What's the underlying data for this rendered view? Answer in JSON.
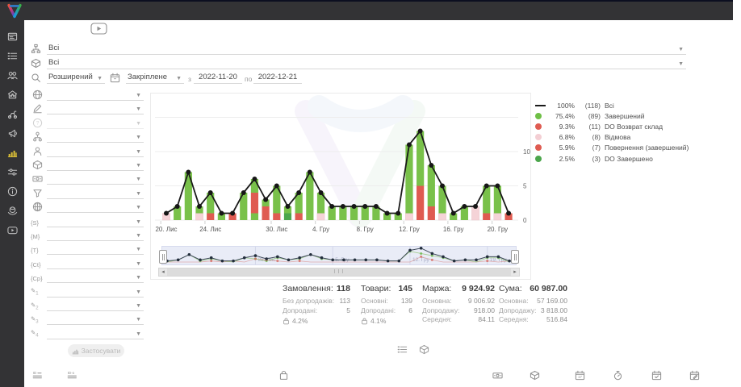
{
  "sidebar": {
    "items": [
      {
        "icon": "window-panel"
      },
      {
        "icon": "order-list"
      },
      {
        "icon": "customers"
      },
      {
        "icon": "warehouse"
      },
      {
        "icon": "delivery"
      },
      {
        "icon": "megaphone"
      },
      {
        "icon": "statistics-chart",
        "active": true
      },
      {
        "icon": "settings-sliders"
      },
      {
        "icon": "info"
      },
      {
        "icon": "partners"
      },
      {
        "icon": "video-play"
      }
    ]
  },
  "filters": {
    "source": {
      "icon": "site-tree",
      "value": "Всі"
    },
    "product": {
      "icon": "cube",
      "value": "Всі"
    },
    "mode": {
      "icon": "search",
      "value": "Розширений"
    },
    "period": {
      "icon": "calendar",
      "value": "Закріплене",
      "from_label": "з",
      "from": "2022-11-20",
      "to_label": "по",
      "to": "2022-12-21"
    },
    "rows": [
      {
        "icon": "globe"
      },
      {
        "icon": "signature"
      },
      {
        "icon": "help",
        "disabled": true
      },
      {
        "icon": "hierarchy"
      },
      {
        "icon": "person"
      },
      {
        "icon": "cube"
      },
      {
        "icon": "banknote"
      },
      {
        "icon": "funnel"
      },
      {
        "icon": "globe-grid"
      },
      {
        "icon": "brace",
        "label": "{S}"
      },
      {
        "icon": "brace",
        "label": "{M}"
      },
      {
        "icon": "brace",
        "label": "{T}"
      },
      {
        "icon": "brace",
        "label": "{Ct}"
      },
      {
        "icon": "brace",
        "label": "{Cp}"
      },
      {
        "icon": "pencil",
        "label": "1"
      },
      {
        "icon": "pencil",
        "label": "2"
      },
      {
        "icon": "pencil",
        "label": "3"
      },
      {
        "icon": "pencil",
        "label": "4"
      }
    ],
    "apply_label": "Застосувати"
  },
  "chart_data": {
    "type": "bar",
    "stacked": true,
    "title": "",
    "xlabel": "",
    "ylabel": "",
    "ylim": [
      0,
      15
    ],
    "yticks": [
      0,
      5,
      10
    ],
    "grid": true,
    "legend_position": "right",
    "x_dates": [
      "2022-11-20",
      "2022-11-21",
      "2022-11-22",
      "2022-11-23",
      "2022-11-24",
      "2022-11-25",
      "2022-11-26",
      "2022-11-27",
      "2022-11-28",
      "2022-11-29",
      "2022-11-30",
      "2022-12-01",
      "2022-12-02",
      "2022-12-03",
      "2022-12-04",
      "2022-12-05",
      "2022-12-06",
      "2022-12-07",
      "2022-12-08",
      "2022-12-09",
      "2022-12-10",
      "2022-12-11",
      "2022-12-12",
      "2022-12-13",
      "2022-12-14",
      "2022-12-15",
      "2022-12-16",
      "2022-12-17",
      "2022-12-18",
      "2022-12-19",
      "2022-12-20",
      "2022-12-21"
    ],
    "totals": [
      1,
      2,
      7,
      2,
      4,
      1,
      1,
      4,
      6,
      3,
      5,
      2,
      4,
      7,
      4,
      2,
      2,
      2,
      2,
      2,
      1,
      1,
      11,
      13,
      8,
      5,
      1,
      2,
      2,
      5,
      5,
      1
    ],
    "stacks": [
      [
        [
          "p",
          1
        ]
      ],
      [
        [
          "g",
          2
        ]
      ],
      [
        [
          "g",
          7
        ]
      ],
      [
        [
          "p",
          1
        ],
        [
          "g",
          1
        ]
      ],
      [
        [
          "r",
          1
        ],
        [
          "g",
          3
        ]
      ],
      [
        [
          "g",
          1
        ]
      ],
      [
        [
          "r",
          1
        ]
      ],
      [
        [
          "g",
          4
        ]
      ],
      [
        [
          "g",
          1
        ],
        [
          "r",
          3
        ],
        [
          "g",
          2
        ]
      ],
      [
        [
          "r",
          2
        ],
        [
          "g",
          1
        ]
      ],
      [
        [
          "r",
          1
        ],
        [
          "g",
          4
        ]
      ],
      [
        [
          "gd",
          1
        ],
        [
          "g",
          1
        ]
      ],
      [
        [
          "r",
          1
        ],
        [
          "g",
          3
        ]
      ],
      [
        [
          "g",
          7
        ]
      ],
      [
        [
          "p",
          1
        ],
        [
          "g",
          3
        ]
      ],
      [
        [
          "g",
          2
        ]
      ],
      [
        [
          "g",
          2
        ]
      ],
      [
        [
          "g",
          2
        ]
      ],
      [
        [
          "g",
          2
        ]
      ],
      [
        [
          "g",
          2
        ]
      ],
      [
        [
          "g",
          1
        ]
      ],
      [
        [
          "g",
          1
        ]
      ],
      [
        [
          "p",
          1
        ],
        [
          "g",
          10
        ]
      ],
      [
        [
          "r",
          5
        ],
        [
          "g",
          8
        ]
      ],
      [
        [
          "r",
          2
        ],
        [
          "g",
          6
        ]
      ],
      [
        [
          "p",
          1
        ],
        [
          "g",
          4
        ]
      ],
      [
        [
          "g",
          1
        ]
      ],
      [
        [
          "g",
          2
        ]
      ],
      [
        [
          "p",
          2
        ]
      ],
      [
        [
          "r",
          1
        ],
        [
          "g",
          4
        ]
      ],
      [
        [
          "p",
          1
        ],
        [
          "g",
          4
        ]
      ],
      [
        [
          "r",
          1
        ]
      ]
    ],
    "colors": {
      "g": "#79c14a",
      "gd": "#4ca64c",
      "r": "#df5b51",
      "p": "#f5d3d7",
      "line": "#1a1a1a"
    },
    "xticks": [
      {
        "index": 0,
        "label": "20. Лис"
      },
      {
        "index": 4,
        "label": "24. Лис"
      },
      {
        "index": 10,
        "label": "30. Лис"
      },
      {
        "index": 14,
        "label": "4. Гру"
      },
      {
        "index": 18,
        "label": "8. Гру"
      },
      {
        "index": 22,
        "label": "12. Гру"
      },
      {
        "index": 26,
        "label": "16. Гру"
      },
      {
        "index": 30,
        "label": "20. Гру"
      }
    ]
  },
  "legend": {
    "items": [
      {
        "marker": "line",
        "color": "#1a1a1a",
        "percent": "100%",
        "count": "(118)",
        "label": "Всі"
      },
      {
        "marker": "dot",
        "color": "#6ebf45",
        "percent": "75.4%",
        "count": "(89)",
        "label": "Завершений"
      },
      {
        "marker": "dot",
        "color": "#df5b51",
        "percent": "9.3%",
        "count": "(11)",
        "label": "DO Возврат склад"
      },
      {
        "marker": "dot",
        "color": "#f3ced3",
        "percent": "6.8%",
        "count": "(8)",
        "label": "Відмова"
      },
      {
        "marker": "dot",
        "color": "#df5b51",
        "percent": "5.9%",
        "count": "(7)",
        "label": "Повернення (завершений)"
      },
      {
        "marker": "dot",
        "color": "#4ca64c",
        "percent": "2.5%",
        "count": "(3)",
        "label": "DO Завершено"
      }
    ]
  },
  "navigator": {
    "labels": [
      {
        "index": 8,
        "label": "28. Лис"
      },
      {
        "index": 15,
        "label": "5. Гру"
      },
      {
        "index": 22,
        "label": "12. Гру"
      },
      {
        "index": 29,
        "label": "19. Гру"
      }
    ],
    "left_arrow": "◂",
    "right_arrow": "▸",
    "grip": "| | |"
  },
  "stats": {
    "columns": [
      {
        "title": "Замовлення:",
        "value": "118",
        "rows": [
          {
            "label": "Без допродажів:",
            "value": "113"
          },
          {
            "label": "Допродані:",
            "value": "5"
          }
        ],
        "percent": "4.2%"
      },
      {
        "title": "Товари:",
        "value": "145",
        "rows": [
          {
            "label": "Основні:",
            "value": "139"
          },
          {
            "label": "Допродані:",
            "value": "6"
          }
        ],
        "percent": "4.1%"
      },
      {
        "title": "Маржа:",
        "value": "9 924.92",
        "rows": [
          {
            "label": "Основна:",
            "value": "9 006.92"
          },
          {
            "label": "Допродажу:",
            "value": "918.00"
          },
          {
            "label": "Середня:",
            "value": "84.11"
          }
        ]
      },
      {
        "title": "Сума:",
        "value": "60 987.00",
        "rows": [
          {
            "label": "Основна:",
            "value": "57 169.00"
          },
          {
            "label": "Допродажу:",
            "value": "3 818.00"
          },
          {
            "label": "Середня:",
            "value": "516.84"
          }
        ]
      }
    ]
  },
  "view_toggles": [
    {
      "icon": "order-list"
    },
    {
      "icon": "cube"
    }
  ],
  "bottom_icons": [
    {
      "icon": "id-lines"
    },
    {
      "icon": "id-o-lines"
    },
    {
      "icon": "bag"
    },
    {
      "icon": "banknote"
    },
    {
      "icon": "cube"
    },
    {
      "icon": "calendar-17"
    },
    {
      "icon": "stopwatch"
    },
    {
      "icon": "calendar-check"
    },
    {
      "icon": "calendar-edit"
    }
  ]
}
